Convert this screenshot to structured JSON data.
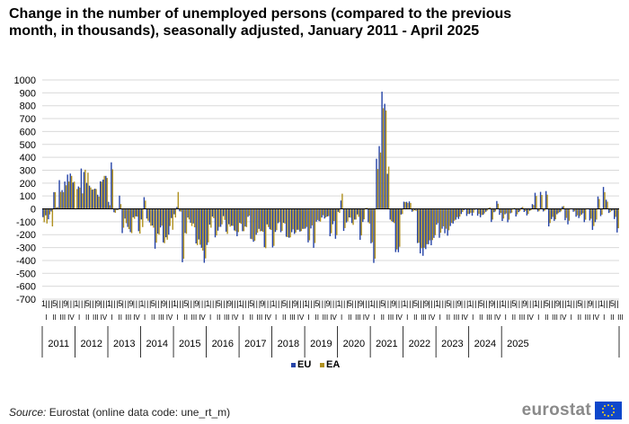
{
  "title": "Change in the number of unemployed persons (compared to the previous month, in thousands), seasonally adjusted, January 2011 - April 2025",
  "source_label": "Source:",
  "source_text": " Eurostat (online data code: une_rt_m)",
  "logo_text": "eurostat",
  "colors": {
    "EU": "#2644a7",
    "EA": "#b09120",
    "grid": "#d9d9d9",
    "axis": "#000000"
  },
  "chart_data": {
    "type": "bar",
    "title": "Change in the number of unemployed persons (compared to the previous month, in thousands), seasonally adjusted, January 2011 - April 2025",
    "xlabel": "",
    "ylabel": "",
    "ylim": [
      -700,
      1000
    ],
    "yticks": [
      -700,
      -600,
      -500,
      -400,
      -300,
      -200,
      -100,
      0,
      100,
      200,
      300,
      400,
      500,
      600,
      700,
      800,
      900,
      1000
    ],
    "grid": true,
    "legend_position": "bottom",
    "year_labels": [
      "2011",
      "2012",
      "2013",
      "2014",
      "2015",
      "2016",
      "2017",
      "2018",
      "2019",
      "2020",
      "2021",
      "2022",
      "2023",
      "2024",
      "2025"
    ],
    "month_tick_pattern": [
      "1",
      "",
      "",
      "",
      "5",
      "",
      "",
      "",
      "9",
      "",
      "",
      ""
    ],
    "quarter_tick_pattern": [
      "I",
      "II",
      "III",
      "IV"
    ],
    "series": [
      {
        "name": "EU",
        "values": [
          -64,
          -50,
          -81,
          -20,
          130,
          12,
          223,
          146,
          212,
          266,
          274,
          205,
          -3,
          174,
          313,
          286,
          202,
          180,
          149,
          157,
          110,
          214,
          227,
          256,
          55,
          361,
          -26,
          -9,
          103,
          -188,
          -75,
          -140,
          -180,
          -65,
          -58,
          -173,
          -82,
          91,
          -75,
          -105,
          -129,
          -309,
          -192,
          -144,
          -260,
          -220,
          -200,
          -71,
          -42,
          15,
          -19,
          -414,
          -187,
          -67,
          -108,
          -113,
          -268,
          -237,
          -302,
          -418,
          -280,
          -122,
          -60,
          -221,
          -169,
          -139,
          -56,
          -177,
          -119,
          -131,
          -167,
          -212,
          -109,
          -173,
          -137,
          -62,
          -232,
          -255,
          -201,
          -155,
          -172,
          -297,
          -120,
          -158,
          -299,
          -179,
          -111,
          -181,
          -108,
          -216,
          -224,
          -181,
          -194,
          -162,
          -176,
          -155,
          -153,
          -260,
          -152,
          -302,
          -99,
          -95,
          -67,
          -75,
          -59,
          -212,
          -119,
          -232,
          -23,
          65,
          -171,
          -106,
          -66,
          -110,
          -83,
          -43,
          -240,
          -102,
          6,
          -104,
          -267,
          -419,
          389,
          487,
          909,
          815,
          272,
          -83,
          -102,
          -335,
          -336,
          -44,
          56,
          55,
          58,
          -22,
          -10,
          -265,
          -345,
          -364,
          -312,
          -274,
          -282,
          -225,
          -123,
          -224,
          -154,
          -189,
          -208,
          -133,
          -114,
          -84,
          -78,
          -40,
          -10,
          -55,
          -40,
          -53,
          -7,
          -53,
          -65,
          -46,
          -22,
          6,
          -102,
          -26,
          61,
          -46,
          -94,
          -42,
          -104,
          -34,
          3,
          -59,
          -25,
          10,
          -24,
          -51,
          -15,
          37,
          125,
          -21,
          132,
          -20,
          138,
          -136,
          -79,
          -93,
          -42,
          -26,
          18,
          -88,
          -120,
          -1,
          -22,
          -61,
          -71,
          -44,
          -103,
          1,
          -90,
          -163,
          -103,
          96,
          -56,
          170,
          71,
          -32,
          -15,
          -79,
          -183
        ]
      },
      {
        "name": "EA",
        "values": [
          -104,
          -113,
          -43,
          -136,
          130,
          14,
          132,
          130,
          183,
          212,
          256,
          211,
          154,
          165,
          120,
          304,
          281,
          166,
          152,
          154,
          95,
          211,
          256,
          240,
          28,
          307,
          -30,
          -9,
          37,
          -146,
          -111,
          -157,
          -188,
          -77,
          -60,
          -192,
          -141,
          64,
          -92,
          -131,
          -146,
          -262,
          -200,
          -130,
          -266,
          -239,
          -133,
          -162,
          -67,
          131,
          -21,
          -387,
          -193,
          -82,
          -133,
          -143,
          -281,
          -278,
          -323,
          -384,
          -260,
          -146,
          -72,
          -206,
          -140,
          -120,
          -86,
          -194,
          -138,
          -132,
          -174,
          -180,
          -116,
          -173,
          -141,
          -52,
          -236,
          -247,
          -185,
          -174,
          -178,
          -305,
          -141,
          -163,
          -287,
          -165,
          -103,
          -171,
          -114,
          -219,
          -221,
          -159,
          -183,
          -162,
          -172,
          -155,
          -140,
          -244,
          -128,
          -265,
          -86,
          -99,
          -49,
          -66,
          -56,
          -189,
          -94,
          -204,
          -31,
          118,
          -149,
          -97,
          -68,
          -124,
          -83,
          -62,
          -206,
          -81,
          8,
          -114,
          -259,
          -386,
          309,
          437,
          781,
          763,
          328,
          -95,
          -110,
          -314,
          -294,
          -40,
          53,
          46,
          46,
          -18,
          -16,
          -263,
          -305,
          -302,
          -274,
          -244,
          -242,
          -204,
          -110,
          -185,
          -135,
          -154,
          -166,
          -109,
          -92,
          -64,
          -60,
          -24,
          3,
          -39,
          -30,
          -29,
          4,
          -38,
          -48,
          -35,
          -14,
          12,
          -83,
          -20,
          40,
          -31,
          -75,
          -35,
          -84,
          -29,
          7,
          -43,
          -18,
          15,
          -17,
          -40,
          -12,
          30,
          100,
          -18,
          108,
          -15,
          110,
          -110,
          -62,
          -81,
          -33,
          -19,
          22,
          -70,
          -92,
          2,
          -19,
          -50,
          -56,
          -34,
          -84,
          4,
          -76,
          -133,
          -83,
          77,
          -45,
          130,
          56,
          -25,
          -12,
          -62,
          -150
        ]
      }
    ]
  }
}
